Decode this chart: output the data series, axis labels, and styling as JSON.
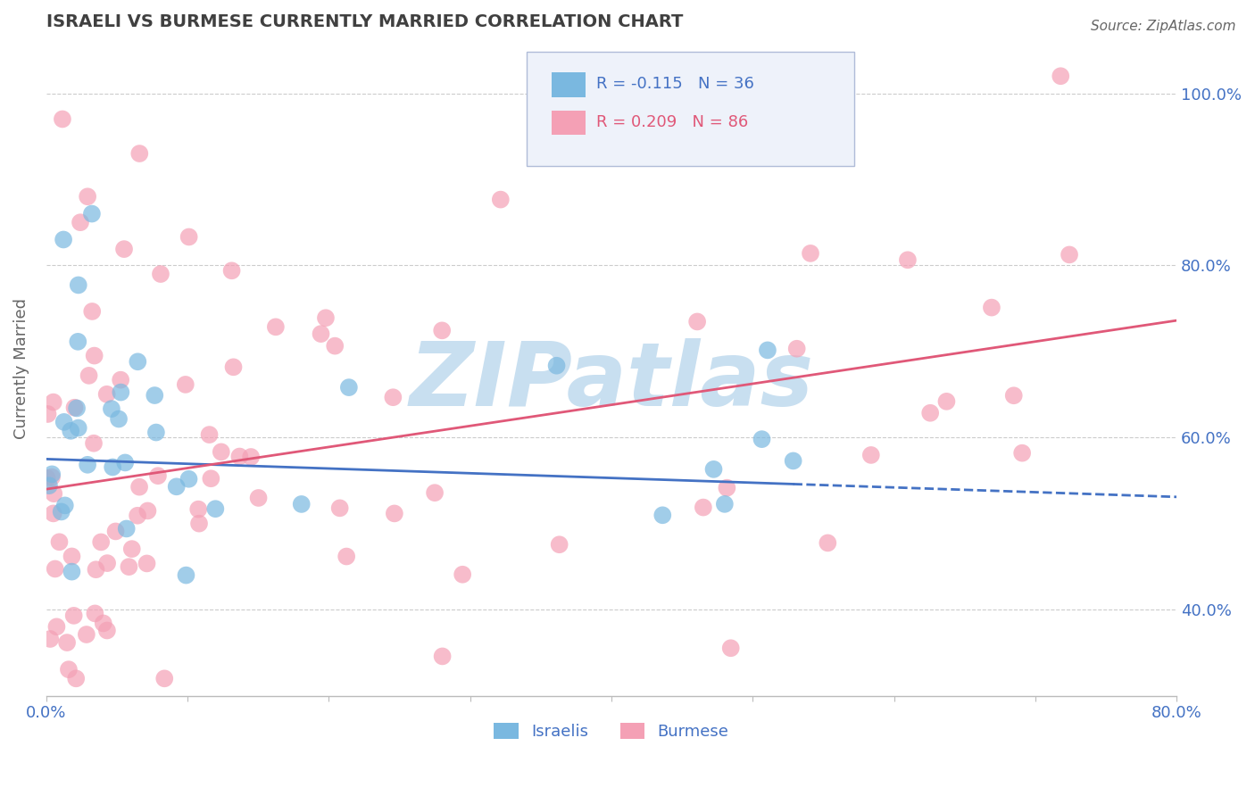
{
  "title": "ISRAELI VS BURMESE CURRENTLY MARRIED CORRELATION CHART",
  "source": "Source: ZipAtlas.com",
  "ylabel": "Currently Married",
  "yticks": [
    0.4,
    0.6,
    0.8,
    1.0
  ],
  "ytick_labels": [
    "40.0%",
    "60.0%",
    "80.0%",
    "100.0%"
  ],
  "xlim": [
    0.0,
    0.8
  ],
  "ylim": [
    0.3,
    1.06
  ],
  "israeli_color": "#7ab8e0",
  "burmese_color": "#f4a0b5",
  "israeli_line_color": "#4472c4",
  "burmese_line_color": "#e05878",
  "grid_color": "#cccccc",
  "watermark_text": "ZIPatlas",
  "watermark_color": "#c8dff0",
  "legend_R_israeli": "R = -0.115",
  "legend_N_israeli": "N = 36",
  "legend_R_burmese": "R = 0.209",
  "legend_N_burmese": "N = 86",
  "israeli_N": 36,
  "burmese_N": 86,
  "israeli_intercept": 0.575,
  "israeli_slope": -0.055,
  "burmese_intercept": 0.54,
  "burmese_slope": 0.245,
  "background_color": "#ffffff",
  "text_color": "#4472c4",
  "title_color": "#404040",
  "legend_bg": "#eef2fa",
  "legend_border": "#b0bcd8"
}
